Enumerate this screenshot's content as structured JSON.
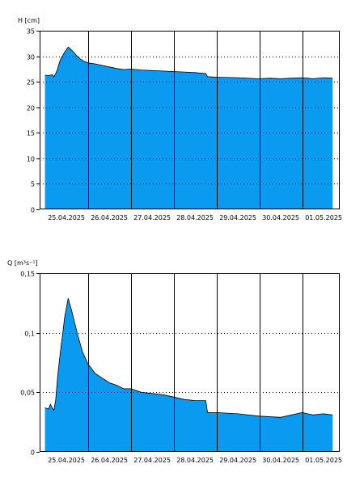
{
  "chart_data": [
    {
      "type": "area",
      "ylabel": "H [cm]",
      "ylim": [
        0,
        35
      ],
      "yticks": [
        {
          "v": 0,
          "label": "0"
        },
        {
          "v": 5,
          "label": "5"
        },
        {
          "v": 10,
          "label": "10"
        },
        {
          "v": 15,
          "label": "15"
        },
        {
          "v": 20,
          "label": "20"
        },
        {
          "v": 25,
          "label": "25"
        },
        {
          "v": 30,
          "label": "30"
        },
        {
          "v": 35,
          "label": "35"
        }
      ],
      "xlim": [
        "2025-04-24T21:00",
        "2025-05-01T21:00"
      ],
      "xticks": [
        {
          "v": "2025-04-25T12:00",
          "label": "25.04.2025"
        },
        {
          "v": "2025-04-26T12:00",
          "label": "26.04.2025"
        },
        {
          "v": "2025-04-27T12:00",
          "label": "27.04.2025"
        },
        {
          "v": "2025-04-28T12:00",
          "label": "28.04.2025"
        },
        {
          "v": "2025-04-29T12:00",
          "label": "29.04.2025"
        },
        {
          "v": "2025-04-30T12:00",
          "label": "30.04.2025"
        },
        {
          "v": "2025-05-01T12:00",
          "label": "01.05.2025"
        }
      ],
      "day_gridlines": [
        "2025-04-26T00:00",
        "2025-04-27T00:00",
        "2025-04-28T00:00",
        "2025-04-29T00:00",
        "2025-04-30T00:00",
        "2025-05-01T00:00"
      ],
      "grid": "y dotted",
      "fill_color": "#0a9bf0",
      "points": [
        [
          "2025-04-25T00:00",
          26.3
        ],
        [
          "2025-04-25T02:00",
          26.2
        ],
        [
          "2025-04-25T04:00",
          26.4
        ],
        [
          "2025-04-25T05:00",
          26.0
        ],
        [
          "2025-04-25T06:00",
          26.6
        ],
        [
          "2025-04-25T07:00",
          27.5
        ],
        [
          "2025-04-25T08:00",
          28.7
        ],
        [
          "2025-04-25T09:00",
          29.6
        ],
        [
          "2025-04-25T10:00",
          30.2
        ],
        [
          "2025-04-25T11:00",
          30.8
        ],
        [
          "2025-04-25T12:00",
          31.3
        ],
        [
          "2025-04-25T13:00",
          31.8
        ],
        [
          "2025-04-25T14:00",
          31.5
        ],
        [
          "2025-04-25T16:00",
          30.8
        ],
        [
          "2025-04-25T18:00",
          30.0
        ],
        [
          "2025-04-25T20:00",
          29.4
        ],
        [
          "2025-04-25T22:00",
          29.0
        ],
        [
          "2025-04-26T00:00",
          28.7
        ],
        [
          "2025-04-26T04:00",
          28.5
        ],
        [
          "2025-04-26T08:00",
          28.2
        ],
        [
          "2025-04-26T12:00",
          27.9
        ],
        [
          "2025-04-26T16:00",
          27.6
        ],
        [
          "2025-04-26T20:00",
          27.4
        ],
        [
          "2025-04-27T00:00",
          27.5
        ],
        [
          "2025-04-27T06:00",
          27.3
        ],
        [
          "2025-04-27T12:00",
          27.2
        ],
        [
          "2025-04-27T18:00",
          27.1
        ],
        [
          "2025-04-28T00:00",
          27.0
        ],
        [
          "2025-04-28T06:00",
          26.9
        ],
        [
          "2025-04-28T12:00",
          26.8
        ],
        [
          "2025-04-28T18:00",
          26.6
        ],
        [
          "2025-04-28T19:00",
          26.0
        ],
        [
          "2025-04-29T00:00",
          25.9
        ],
        [
          "2025-04-29T12:00",
          25.8
        ],
        [
          "2025-04-30T00:00",
          25.6
        ],
        [
          "2025-04-30T06:00",
          25.7
        ],
        [
          "2025-04-30T12:00",
          25.6
        ],
        [
          "2025-04-30T18:00",
          25.7
        ],
        [
          "2025-05-01T00:00",
          25.8
        ],
        [
          "2025-05-01T06:00",
          25.6
        ],
        [
          "2025-05-01T12:00",
          25.8
        ],
        [
          "2025-05-01T17:00",
          25.7
        ]
      ]
    },
    {
      "type": "area",
      "ylabel": "Q [m³s⁻¹]",
      "ylim": [
        0,
        0.15
      ],
      "yticks": [
        {
          "v": 0,
          "label": "0"
        },
        {
          "v": 0.05,
          "label": "0,05"
        },
        {
          "v": 0.1,
          "label": "0,1"
        },
        {
          "v": 0.15,
          "label": "0,15"
        }
      ],
      "xlim": [
        "2025-04-24T21:00",
        "2025-05-01T21:00"
      ],
      "xticks": [
        {
          "v": "2025-04-25T12:00",
          "label": "25.04.2025"
        },
        {
          "v": "2025-04-26T12:00",
          "label": "26.04.2025"
        },
        {
          "v": "2025-04-27T12:00",
          "label": "27.04.2025"
        },
        {
          "v": "2025-04-28T12:00",
          "label": "28.04.2025"
        },
        {
          "v": "2025-04-29T12:00",
          "label": "29.04.2025"
        },
        {
          "v": "2025-04-30T12:00",
          "label": "30.04.2025"
        },
        {
          "v": "2025-05-01T12:00",
          "label": "01.05.2025"
        }
      ],
      "day_gridlines": [
        "2025-04-26T00:00",
        "2025-04-27T00:00",
        "2025-04-28T00:00",
        "2025-04-29T00:00",
        "2025-04-30T00:00",
        "2025-05-01T00:00"
      ],
      "grid": "y dotted",
      "fill_color": "#0a9bf0",
      "points": [
        [
          "2025-04-25T00:00",
          0.037
        ],
        [
          "2025-04-25T02:00",
          0.036
        ],
        [
          "2025-04-25T03:00",
          0.04
        ],
        [
          "2025-04-25T04:00",
          0.037
        ],
        [
          "2025-04-25T05:00",
          0.035
        ],
        [
          "2025-04-25T06:00",
          0.044
        ],
        [
          "2025-04-25T07:00",
          0.062
        ],
        [
          "2025-04-25T08:00",
          0.076
        ],
        [
          "2025-04-25T09:00",
          0.089
        ],
        [
          "2025-04-25T10:00",
          0.1
        ],
        [
          "2025-04-25T11:00",
          0.113
        ],
        [
          "2025-04-25T13:00",
          0.129
        ],
        [
          "2025-04-25T15:00",
          0.118
        ],
        [
          "2025-04-25T18:00",
          0.1
        ],
        [
          "2025-04-25T21:00",
          0.084
        ],
        [
          "2025-04-26T00:00",
          0.074
        ],
        [
          "2025-04-26T04:00",
          0.066
        ],
        [
          "2025-04-26T08:00",
          0.062
        ],
        [
          "2025-04-26T12:00",
          0.058
        ],
        [
          "2025-04-26T16:00",
          0.056
        ],
        [
          "2025-04-26T20:00",
          0.053
        ],
        [
          "2025-04-27T00:00",
          0.053
        ],
        [
          "2025-04-27T06:00",
          0.05
        ],
        [
          "2025-04-27T12:00",
          0.049
        ],
        [
          "2025-04-27T18:00",
          0.048
        ],
        [
          "2025-04-28T00:00",
          0.046
        ],
        [
          "2025-04-28T06:00",
          0.044
        ],
        [
          "2025-04-28T12:00",
          0.043
        ],
        [
          "2025-04-28T18:00",
          0.043
        ],
        [
          "2025-04-28T19:00",
          0.033
        ],
        [
          "2025-04-29T00:00",
          0.033
        ],
        [
          "2025-04-29T12:00",
          0.032
        ],
        [
          "2025-04-30T00:00",
          0.03
        ],
        [
          "2025-04-30T12:00",
          0.029
        ],
        [
          "2025-04-30T18:00",
          0.031
        ],
        [
          "2025-05-01T00:00",
          0.033
        ],
        [
          "2025-05-01T06:00",
          0.031
        ],
        [
          "2025-05-01T12:00",
          0.032
        ],
        [
          "2025-05-01T17:00",
          0.031
        ]
      ]
    }
  ]
}
